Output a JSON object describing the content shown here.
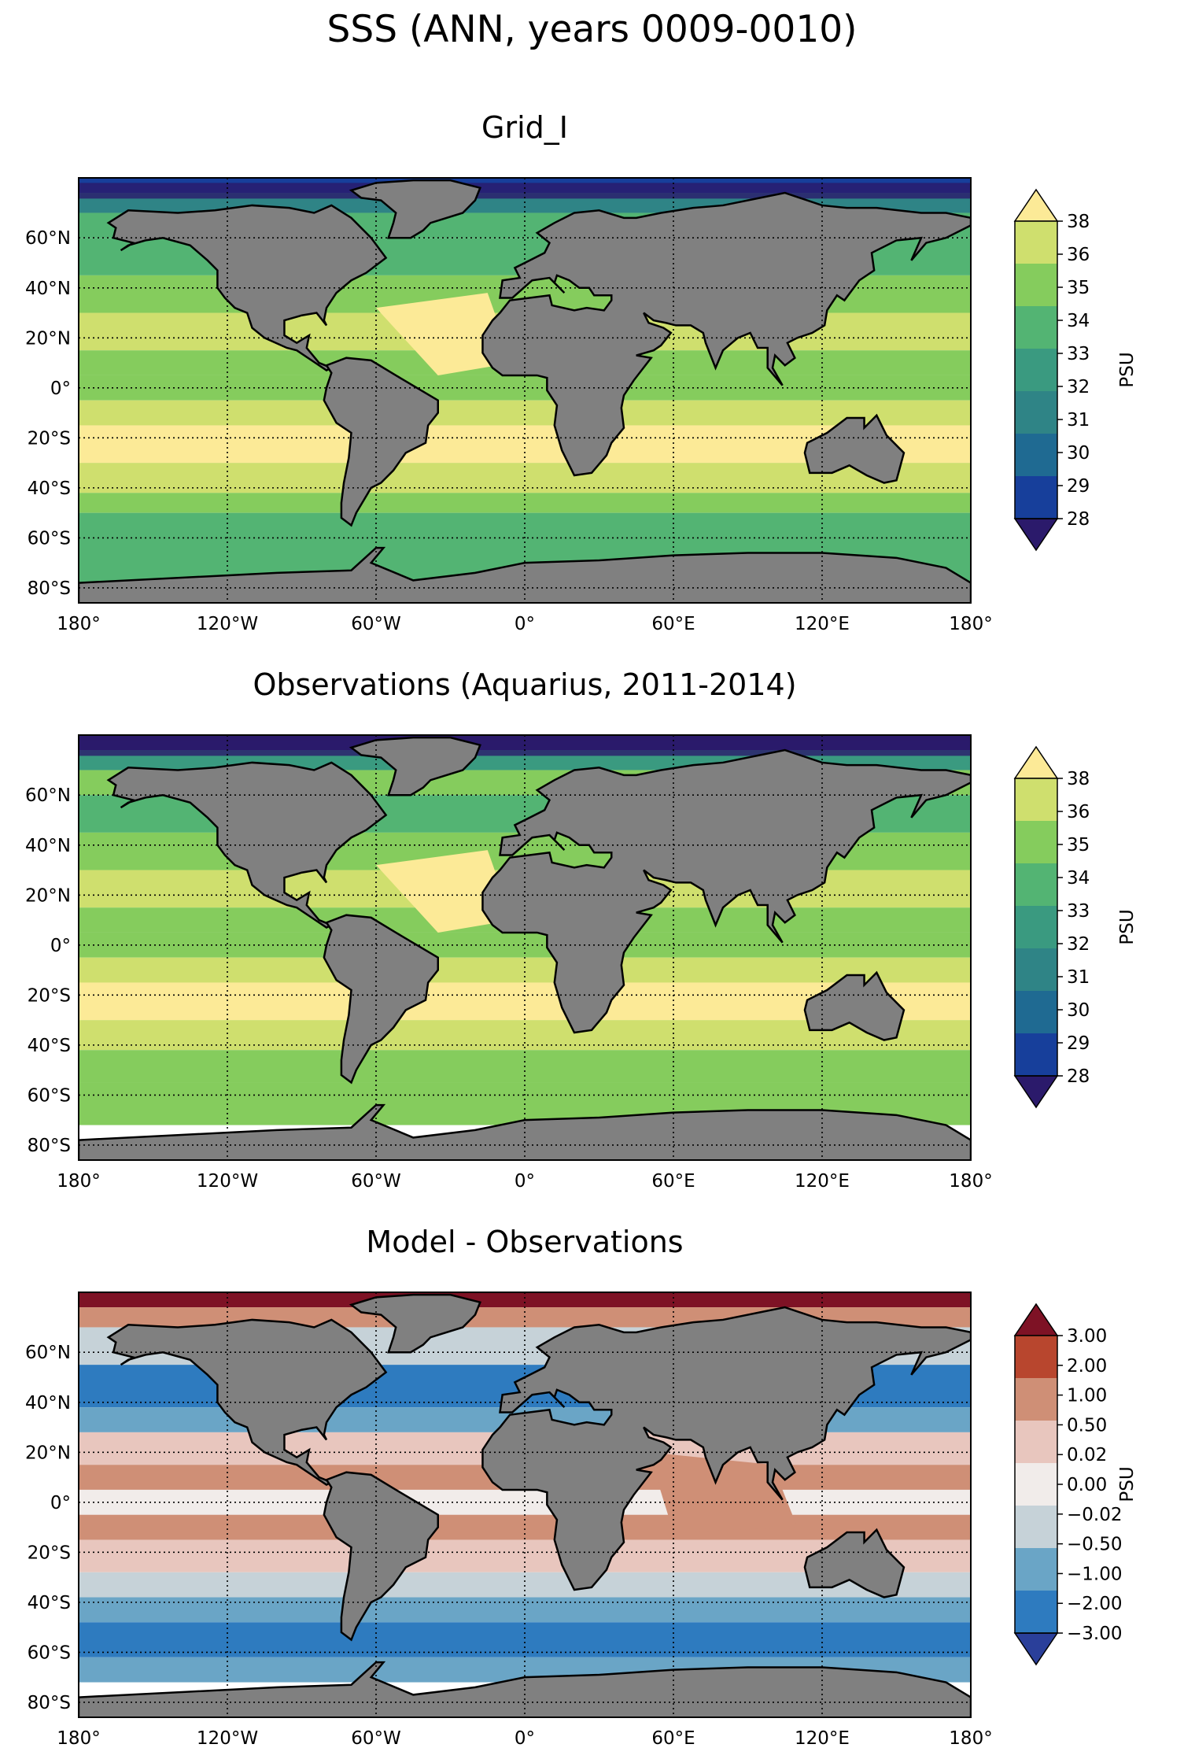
{
  "title": "SSS (ANN, years 0009-0010)",
  "lon_ticks": [
    "180°",
    "120°W",
    "60°W",
    "0°",
    "60°E",
    "120°E",
    "180°"
  ],
  "lat_ticks": [
    "60°N",
    "40°N",
    "20°N",
    "0°",
    "20°S",
    "40°S",
    "60°S",
    "80°S"
  ],
  "unit_label": "PSU",
  "colors": {
    "land": "#808080",
    "frame": "#000000",
    "sss_scale": [
      "#2b1a6b",
      "#173f9b",
      "#1f6a92",
      "#2f8486",
      "#3a9a80",
      "#53b473",
      "#85cc5d",
      "#cfdf6e",
      "#fcea97"
    ],
    "diff_scale": [
      "#2a3f9a",
      "#2e7bbf",
      "#6aa5c6",
      "#c6d2d8",
      "#f1ecea",
      "#e8c6be",
      "#cf8f76",
      "#b8462e",
      "#7e1225"
    ]
  },
  "panels": [
    {
      "id": "model",
      "title": "Grid_I",
      "colorbar_labels": [
        "38",
        "36",
        "35",
        "34",
        "33",
        "32",
        "31",
        "30",
        "29",
        "28"
      ],
      "scale": "sss"
    },
    {
      "id": "obs",
      "title": "Observations (Aquarius, 2011-2014)",
      "colorbar_labels": [
        "38",
        "36",
        "35",
        "34",
        "33",
        "32",
        "31",
        "30",
        "29",
        "28"
      ],
      "scale": "sss"
    },
    {
      "id": "diff",
      "title": "Model - Observations",
      "colorbar_labels": [
        "3.00",
        "2.00",
        "1.00",
        "0.50",
        "0.02",
        "0.00",
        "−0.02",
        "−0.50",
        "−1.00",
        "−2.00",
        "−3.00"
      ],
      "scale": "diff"
    }
  ]
}
